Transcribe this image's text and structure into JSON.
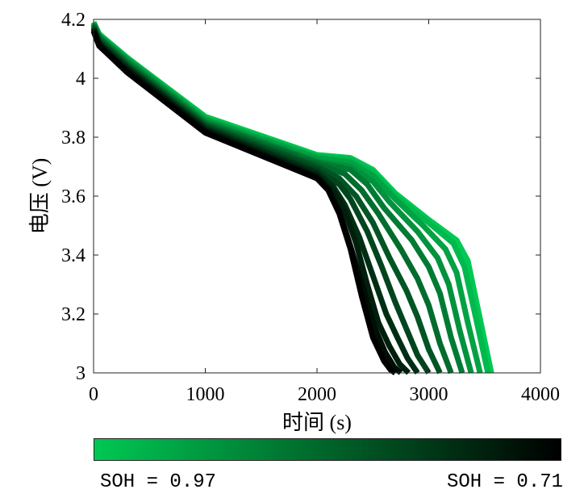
{
  "chart_data": {
    "type": "line",
    "xlabel": "时间 (s)",
    "ylabel": "电压 (V)",
    "xlim": [
      0,
      4000
    ],
    "ylim": [
      3,
      4.2
    ],
    "xticks": [
      0,
      1000,
      2000,
      3000,
      4000
    ],
    "yticks": [
      3,
      3.2,
      3.4,
      3.6,
      3.8,
      4,
      4.2
    ],
    "xtick_labels": [
      "0",
      "1000",
      "2000",
      "3000",
      "4000"
    ],
    "ytick_labels": [
      "3",
      "3.2",
      "3.4",
      "3.6",
      "3.8",
      "4",
      "4.2"
    ],
    "grid": false,
    "legend": "none",
    "colorbar": {
      "position": "bottom",
      "colors": [
        "#00c853",
        "#000000"
      ],
      "left_label": "SOH = 0.97",
      "right_label": "SOH = 0.71"
    },
    "series": [
      {
        "soh": 0.97,
        "x": [
          0,
          50,
          300,
          1000,
          2000,
          2300,
          2500,
          2700,
          3000,
          3250,
          3350,
          3450,
          3560
        ],
        "y": [
          4.19,
          4.15,
          4.07,
          3.87,
          3.74,
          3.73,
          3.69,
          3.61,
          3.52,
          3.45,
          3.38,
          3.2,
          3.0
        ]
      },
      {
        "soh": 0.95,
        "x": [
          0,
          50,
          300,
          1000,
          2000,
          2300,
          2500,
          2700,
          3000,
          3220,
          3320,
          3420,
          3530
        ],
        "y": [
          4.19,
          4.15,
          4.07,
          3.865,
          3.735,
          3.725,
          3.68,
          3.6,
          3.51,
          3.44,
          3.36,
          3.19,
          3.0
        ]
      },
      {
        "soh": 0.92,
        "x": [
          0,
          50,
          300,
          1000,
          2000,
          2300,
          2500,
          2700,
          2950,
          3150,
          3250,
          3350,
          3460
        ],
        "y": [
          4.185,
          4.145,
          4.065,
          3.86,
          3.73,
          3.715,
          3.67,
          3.59,
          3.5,
          3.42,
          3.34,
          3.17,
          3.0
        ]
      },
      {
        "soh": 0.9,
        "x": [
          0,
          50,
          300,
          1000,
          2000,
          2300,
          2500,
          2650,
          2900,
          3080,
          3180,
          3280,
          3380
        ],
        "y": [
          4.185,
          4.14,
          4.06,
          3.855,
          3.72,
          3.7,
          3.65,
          3.58,
          3.48,
          3.39,
          3.3,
          3.14,
          3.0
        ]
      },
      {
        "soh": 0.87,
        "x": [
          0,
          50,
          300,
          1000,
          2000,
          2300,
          2450,
          2600,
          2850,
          3000,
          3100,
          3200,
          3300
        ],
        "y": [
          4.18,
          4.14,
          4.055,
          3.85,
          3.715,
          3.69,
          3.64,
          3.56,
          3.45,
          3.36,
          3.27,
          3.12,
          3.0
        ]
      },
      {
        "soh": 0.85,
        "x": [
          0,
          50,
          300,
          1000,
          2000,
          2250,
          2400,
          2550,
          2750,
          2900,
          3000,
          3100,
          3200
        ],
        "y": [
          4.18,
          4.135,
          4.05,
          3.845,
          3.71,
          3.675,
          3.62,
          3.54,
          3.42,
          3.32,
          3.23,
          3.1,
          3.0
        ]
      },
      {
        "soh": 0.82,
        "x": [
          0,
          50,
          300,
          1000,
          2000,
          2200,
          2350,
          2500,
          2650,
          2800,
          2900,
          3000,
          3100
        ],
        "y": [
          4.175,
          4.13,
          4.045,
          3.84,
          3.7,
          3.66,
          3.6,
          3.51,
          3.39,
          3.28,
          3.19,
          3.08,
          3.0
        ]
      },
      {
        "soh": 0.8,
        "x": [
          0,
          50,
          300,
          1000,
          2000,
          2200,
          2300,
          2450,
          2580,
          2700,
          2800,
          2900,
          3000
        ],
        "y": [
          4.17,
          4.125,
          4.04,
          3.835,
          3.69,
          3.64,
          3.59,
          3.48,
          3.36,
          3.24,
          3.15,
          3.06,
          3.0
        ]
      },
      {
        "soh": 0.77,
        "x": [
          0,
          50,
          300,
          1000,
          2000,
          2150,
          2250,
          2380,
          2500,
          2620,
          2720,
          2810,
          2900
        ],
        "y": [
          4.17,
          4.12,
          4.035,
          3.83,
          3.68,
          3.63,
          3.57,
          3.46,
          3.33,
          3.2,
          3.12,
          3.05,
          3.0
        ]
      },
      {
        "soh": 0.75,
        "x": [
          0,
          50,
          300,
          1000,
          2000,
          2150,
          2250,
          2350,
          2450,
          2550,
          2650,
          2740,
          2820
        ],
        "y": [
          4.165,
          4.115,
          4.03,
          3.825,
          3.67,
          3.615,
          3.55,
          3.44,
          3.3,
          3.17,
          3.09,
          3.03,
          3.0
        ]
      },
      {
        "soh": 0.73,
        "x": [
          0,
          50,
          300,
          1000,
          2000,
          2100,
          2200,
          2300,
          2420,
          2520,
          2610,
          2690,
          2750
        ],
        "y": [
          4.16,
          4.11,
          4.025,
          3.82,
          3.665,
          3.625,
          3.55,
          3.43,
          3.28,
          3.15,
          3.07,
          3.02,
          3.0
        ]
      },
      {
        "soh": 0.71,
        "x": [
          0,
          50,
          300,
          1000,
          2000,
          2100,
          2200,
          2300,
          2400,
          2500,
          2600,
          2660,
          2700
        ],
        "y": [
          4.16,
          4.11,
          4.02,
          3.815,
          3.66,
          3.62,
          3.54,
          3.42,
          3.26,
          3.12,
          3.04,
          3.01,
          3.0
        ]
      }
    ]
  }
}
